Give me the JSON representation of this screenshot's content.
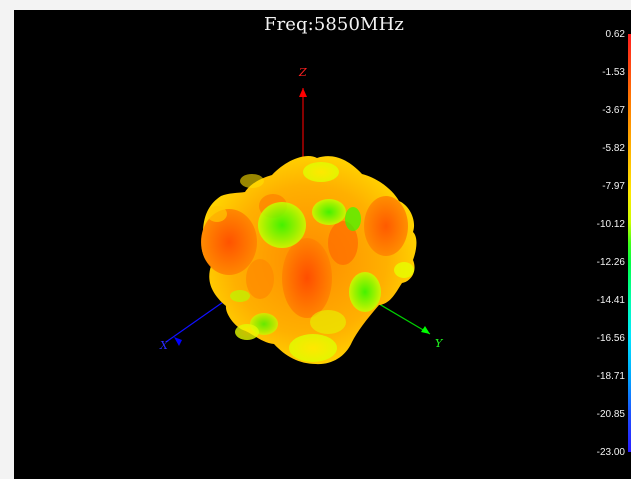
{
  "chart_data": {
    "type": "heatmap",
    "title": "Freq:5850MHz",
    "colorbar": {
      "max": 0.62,
      "min": -23.0,
      "ticks": [
        "0.62",
        "-1.53",
        "-3.67",
        "-5.82",
        "-7.97",
        "-10.12",
        "-12.26",
        "-14.41",
        "-16.56",
        "-18.71",
        "-20.85",
        "-23.00"
      ]
    },
    "axes": {
      "z_label": "Z",
      "x_label": "X",
      "y_label": "Y"
    }
  },
  "colors": {
    "background": "#000000",
    "page": "#f3f3f3",
    "z_axis": "#ff0000",
    "y_axis": "#00ff00",
    "x_axis": "#0000ff"
  }
}
